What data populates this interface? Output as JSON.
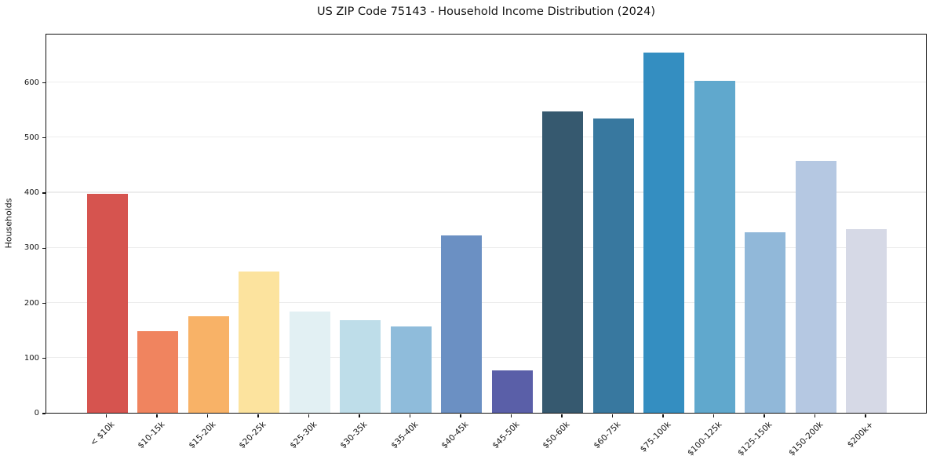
{
  "chart_data": {
    "type": "bar",
    "title": "US ZIP Code 75143 - Household Income Distribution (2024)",
    "xlabel": "",
    "ylabel": "Households",
    "categories": [
      "< $10k",
      "$10-15k",
      "$15-20k",
      "$20-25k",
      "$25-30k",
      "$30-35k",
      "$35-40k",
      "$40-45k",
      "$45-50k",
      "$50-60k",
      "$60-75k",
      "$75-100k",
      "$100-125k",
      "$125-150k",
      "$150-200k",
      "$200k+"
    ],
    "values": [
      397,
      148,
      175,
      256,
      184,
      168,
      156,
      322,
      77,
      547,
      534,
      653,
      602,
      328,
      457,
      333
    ],
    "bar_colors": [
      "#d6544f",
      "#f0845f",
      "#f8b267",
      "#fce39e",
      "#e2f0f3",
      "#bedde9",
      "#8fbcdb",
      "#6b90c3",
      "#5a5fa8",
      "#36596f",
      "#38789f",
      "#348ec1",
      "#60a8cd",
      "#91b8d9",
      "#b5c8e2",
      "#d6d9e6"
    ],
    "yticks": [
      0,
      100,
      200,
      300,
      400,
      500,
      600
    ],
    "ylim": [
      0,
      689
    ],
    "grid": "horizontal-only",
    "gridline_color": "#ededed",
    "spine_color": "#111111",
    "background_color": "#ffffff",
    "legend": "none",
    "xtick_rotation_deg": 45
  }
}
